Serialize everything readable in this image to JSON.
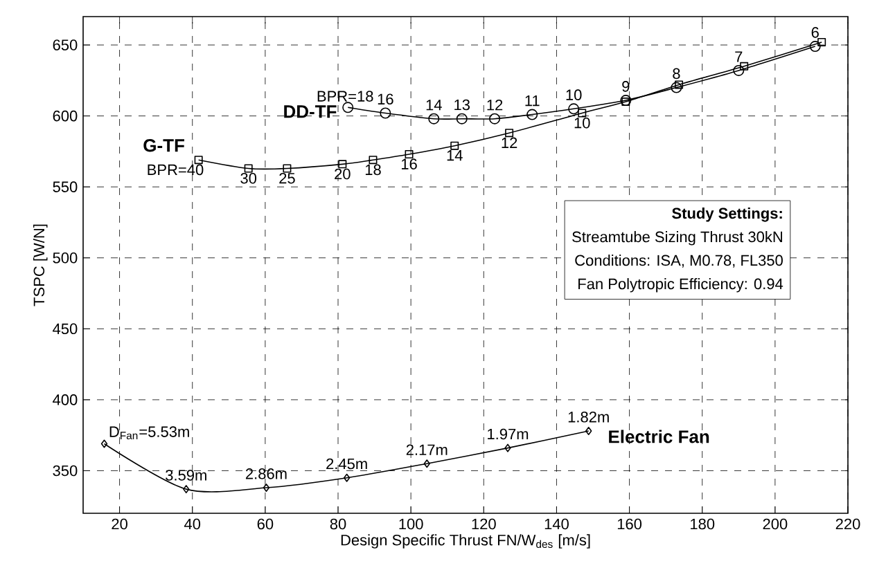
{
  "chart_data": {
    "type": "line",
    "xlabel": "Design Specific Thrust FN/W$_{des}$ [m/s]",
    "ylabel": "TSPC [W/N]",
    "xlim": [
      10,
      220
    ],
    "ylim": [
      320,
      670
    ],
    "xticks": [
      20,
      40,
      60,
      80,
      100,
      120,
      140,
      160,
      180,
      200,
      220
    ],
    "yticks": [
      350,
      400,
      450,
      500,
      550,
      600,
      650
    ],
    "grid": true,
    "legend": false,
    "line_style": "solid",
    "series": [
      {
        "name": "DD-TF",
        "color": "#000000",
        "marker": "circle",
        "x": [
          82.7,
          93,
          106.3,
          114,
          123,
          133.3,
          144.7,
          159,
          172.9,
          190,
          211
        ],
        "values": [
          606,
          602,
          598,
          598,
          598,
          601,
          605,
          611,
          620,
          632,
          649
        ]
      },
      {
        "name": "G-TF",
        "color": "#000000",
        "marker": "square",
        "x": [
          41.7,
          55.4,
          66,
          81.2,
          89.6,
          99.5,
          112,
          127,
          147,
          159,
          173.6,
          191.5,
          212.8
        ],
        "values": [
          569,
          563,
          563,
          566,
          569,
          573,
          579,
          588,
          602,
          610,
          622,
          635,
          652
        ]
      },
      {
        "name": "Electric Fan",
        "color": "#000000",
        "marker": "diamond",
        "x": [
          15.8,
          38.3,
          60.3,
          82.4,
          104.4,
          126.6,
          148.8
        ],
        "values": [
          369,
          337,
          338,
          345,
          355,
          366,
          378
        ]
      }
    ],
    "annotations": [
      "Study Settings:",
      "Streamtube Sizing Thrust 30kN",
      "Conditions: ISA, M0.78, FL350",
      "Fan Polytropic Efficiency: 0.94",
      {
        "text": "BPR=18",
        "x": 82.7,
        "y": 606
      },
      {
        "text": "16",
        "x": 93,
        "y": 602
      },
      {
        "text": "14",
        "x": 106.3,
        "y": 598
      },
      {
        "text": "13",
        "x": 114,
        "y": 598
      },
      {
        "text": "12",
        "x": 123,
        "y": 598
      },
      {
        "text": "11",
        "x": 133.3,
        "y": 601
      },
      {
        "text": "10",
        "x": 144.7,
        "y": 605
      },
      {
        "text": "9",
        "x": 159,
        "y": 611
      },
      {
        "text": "8",
        "x": 172.9,
        "y": 620
      },
      {
        "text": "7",
        "x": 190,
        "y": 632
      },
      {
        "text": "6",
        "x": 211,
        "y": 649
      },
      {
        "text": "BPR=40",
        "x": 41.7,
        "y": 569
      },
      {
        "text": "30",
        "x": 55.4,
        "y": 563
      },
      {
        "text": "25",
        "x": 66,
        "y": 563
      },
      {
        "text": "20",
        "x": 81.2,
        "y": 566
      },
      {
        "text": "18",
        "x": 89.6,
        "y": 569
      },
      {
        "text": "16",
        "x": 99.5,
        "y": 573
      },
      {
        "text": "14",
        "x": 112,
        "y": 579
      },
      {
        "text": "12",
        "x": 127,
        "y": 588
      },
      {
        "text": "10",
        "x": 147,
        "y": 602
      },
      {
        "text": "D$_{Fan}$=5.53m",
        "x": 15.8,
        "y": 369
      },
      {
        "text": "3.59m",
        "x": 38.3,
        "y": 337
      },
      {
        "text": "2.86m",
        "x": 60.3,
        "y": 338
      },
      {
        "text": "2.45m",
        "x": 82.4,
        "y": 345
      },
      {
        "text": "2.17m",
        "x": 104.4,
        "y": 355
      },
      {
        "text": "1.97m",
        "x": 126.6,
        "y": 366
      },
      {
        "text": "1.82m",
        "x": 148.8,
        "y": 378
      }
    ]
  }
}
